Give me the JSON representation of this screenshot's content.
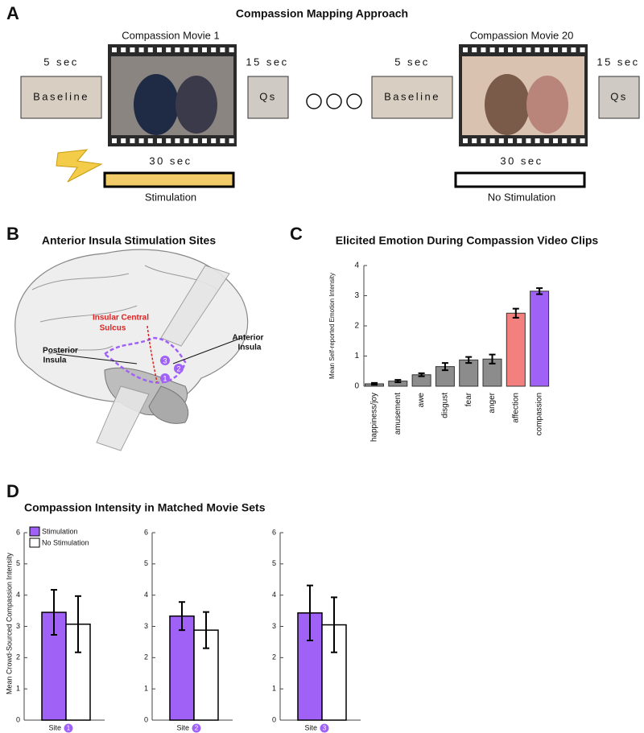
{
  "panel_a": {
    "label": "A",
    "title": "Compassion Mapping Approach",
    "movies": [
      {
        "title": "Compassion Movie 1",
        "baseline_time": "5 sec",
        "baseline": "Baseline",
        "qs_time": "15 sec",
        "qs": "Qs",
        "movie_time": "30 sec",
        "condition": "Stimulation"
      },
      {
        "title": "Compassion Movie 20",
        "baseline_time": "5 sec",
        "baseline": "Baseline",
        "qs_time": "15 sec",
        "qs": "Qs",
        "movie_time": "30 sec",
        "condition": "No Stimulation"
      }
    ]
  },
  "panel_b": {
    "label": "B",
    "title": "Anterior Insula Stimulation Sites",
    "sulcus": [
      "Insular Central",
      "Sulcus"
    ],
    "posterior": [
      "Posterior",
      "Insula"
    ],
    "anterior": [
      "Anterior",
      "Insula"
    ],
    "sites": [
      "1",
      "2",
      "3"
    ]
  },
  "chart_data": [
    {
      "type": "bar",
      "panel": "C",
      "title": "Elicited Emotion During Compassion Video Clips",
      "ylabel": "Mean Self-reported Emotion Intensity",
      "categories": [
        "happiness/joy",
        "amusement",
        "awe",
        "disgust",
        "fear",
        "anger",
        "affection",
        "compassion"
      ],
      "values": [
        0.08,
        0.17,
        0.38,
        0.65,
        0.87,
        0.9,
        2.42,
        3.15
      ],
      "errors": [
        0.03,
        0.04,
        0.05,
        0.12,
        0.1,
        0.15,
        0.15,
        0.1
      ],
      "colors": [
        "#8c8c8c",
        "#8c8c8c",
        "#8c8c8c",
        "#8c8c8c",
        "#8c8c8c",
        "#8c8c8c",
        "#f47f7f",
        "#a062f6"
      ],
      "ylim": [
        0,
        4
      ],
      "yticks": [
        0,
        1,
        2,
        3,
        4
      ]
    },
    {
      "type": "grouped-bar",
      "panel": "D",
      "title": "Compassion Intensity in Matched Movie Sets",
      "ylabel": "Mean Crowd-Sourced Compassion Intensity",
      "xlabel": "Site",
      "categories": [
        "1",
        "2",
        "3"
      ],
      "series": [
        {
          "name": "Stimulation",
          "color": "#a062f6",
          "values": [
            3.45,
            3.33,
            3.43
          ],
          "errors": [
            0.72,
            0.45,
            0.88
          ]
        },
        {
          "name": "No Stimulation",
          "color": "#ffffff",
          "values": [
            3.07,
            2.88,
            3.05
          ],
          "errors": [
            0.9,
            0.58,
            0.88
          ]
        }
      ],
      "ylim": [
        0,
        6
      ],
      "yticks": [
        0,
        1,
        2,
        3,
        4,
        5,
        6
      ]
    }
  ]
}
